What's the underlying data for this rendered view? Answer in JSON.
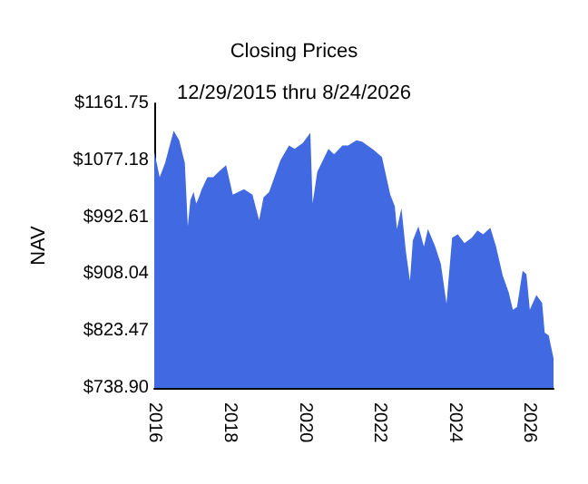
{
  "chart_data": {
    "type": "area",
    "title": "Closing Prices",
    "subtitle": "12/29/2015 thru 8/24/2026",
    "ylabel": "NAV",
    "x": [
      "2015-12-29",
      "2016-02-20",
      "2016-04-12",
      "2016-07-05",
      "2016-08-28",
      "2016-10-22",
      "2016-11-20",
      "2016-12-15",
      "2017-01-15",
      "2017-02-10",
      "2017-03-08",
      "2017-04-05",
      "2017-05-30",
      "2017-07-25",
      "2017-09-17",
      "2017-11-28",
      "2018-02-01",
      "2018-03-28",
      "2018-05-22",
      "2018-08-12",
      "2018-10-16",
      "2018-11-28",
      "2019-01-22",
      "2019-05-11",
      "2019-08-03",
      "2019-09-27",
      "2019-12-16",
      "2020-02-27",
      "2020-03-20",
      "2020-05-05",
      "2020-06-28",
      "2020-08-22",
      "2020-10-15",
      "2021-01-05",
      "2021-03-01",
      "2021-05-22",
      "2021-07-15",
      "2021-11-01",
      "2022-01-25",
      "2022-04-16",
      "2022-05-30",
      "2022-06-20",
      "2022-08-03",
      "2022-09-16",
      "2022-10-25",
      "2022-11-22",
      "2023-01-15",
      "2023-03-10",
      "2023-04-18",
      "2023-06-28",
      "2023-08-22",
      "2023-10-16",
      "2023-12-10",
      "2024-02-03",
      "2024-04-08",
      "2024-06-19",
      "2024-08-13",
      "2024-10-07",
      "2024-12-16",
      "2025-02-10",
      "2025-04-16",
      "2025-06-13",
      "2025-07-24",
      "2025-09-02",
      "2025-10-27",
      "2025-12-03",
      "2026-01-05",
      "2026-03-10",
      "2026-05-05",
      "2026-05-30",
      "2026-07-08",
      "2026-08-24"
    ],
    "series": [
      {
        "color": "#4169e1",
        "values": [
          1090,
          1052,
          1073,
          1121,
          1107,
          1073,
          979,
          1018,
          1030,
          1013,
          1022,
          1034,
          1052,
          1052,
          1060,
          1070,
          1026,
          1030,
          1034,
          1026,
          988,
          1022,
          1030,
          1077,
          1099,
          1094,
          1103,
          1118,
          1013,
          1060,
          1077,
          1094,
          1086,
          1099,
          1099,
          1107,
          1105,
          1093,
          1082,
          1026,
          1009,
          975,
          1006,
          941,
          898,
          958,
          979,
          949,
          975,
          949,
          923,
          864,
          962,
          967,
          954,
          962,
          973,
          967,
          977,
          949,
          906,
          881,
          855,
          859,
          913,
          908,
          855,
          877,
          865,
          821,
          817,
          783
        ]
      }
    ],
    "xlim": [
      "2015-12-29",
      "2026-08-24"
    ],
    "xticks": [
      "2016",
      "2018",
      "2020",
      "2022",
      "2024",
      "2026"
    ],
    "ylim": [
      738.9,
      1161.75
    ],
    "yticks": [
      {
        "value": 738.9,
        "label": "$738.90"
      },
      {
        "value": 823.47,
        "label": "$823.47"
      },
      {
        "value": 908.04,
        "label": "$908.04"
      },
      {
        "value": 992.61,
        "label": "$992.61"
      },
      {
        "value": 1077.18,
        "label": "$1077.18"
      },
      {
        "value": 1161.75,
        "label": "$1161.75"
      }
    ],
    "grid": false
  }
}
